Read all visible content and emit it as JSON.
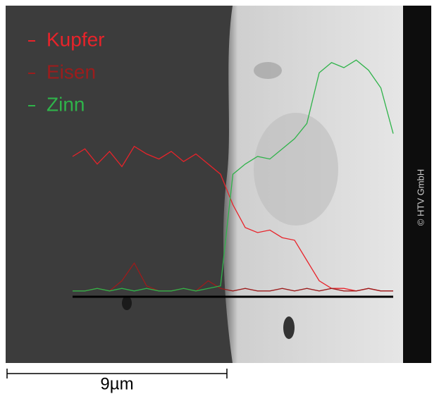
{
  "chart_data": {
    "type": "line",
    "x": [
      0,
      0.5,
      1,
      1.5,
      2,
      2.5,
      3,
      3.5,
      4,
      4.5,
      5,
      5.5,
      6,
      6.5,
      7,
      7.5,
      8,
      8.5,
      9,
      9.5,
      10,
      10.5,
      11,
      11.5,
      12,
      12.5,
      13
    ],
    "xlim": [
      0,
      13
    ],
    "ylim": [
      0,
      100
    ],
    "series": [
      {
        "name": "Kupfer",
        "color": "#e8232a",
        "values": [
          55,
          58,
          52,
          57,
          51,
          59,
          56,
          54,
          57,
          53,
          56,
          52,
          48,
          36,
          27,
          25,
          26,
          23,
          22,
          14,
          6,
          3,
          3,
          2,
          3,
          2,
          2
        ]
      },
      {
        "name": "Eisen",
        "color": "#9c1c1c",
        "values": [
          2,
          2,
          3,
          2,
          6,
          13,
          4,
          2,
          2,
          3,
          2,
          6,
          3,
          2,
          3,
          2,
          2,
          3,
          2,
          3,
          2,
          3,
          2,
          2,
          3,
          2,
          2
        ]
      },
      {
        "name": "Zinn",
        "color": "#2fb34a",
        "values": [
          2,
          2,
          3,
          2,
          3,
          2,
          3,
          2,
          2,
          3,
          2,
          3,
          4,
          48,
          52,
          55,
          54,
          58,
          62,
          68,
          88,
          92,
          90,
          93,
          89,
          82,
          64
        ]
      }
    ],
    "legend": "top-left",
    "scale_bar_label": "9µm",
    "copyright": "© HTV GmbH"
  }
}
